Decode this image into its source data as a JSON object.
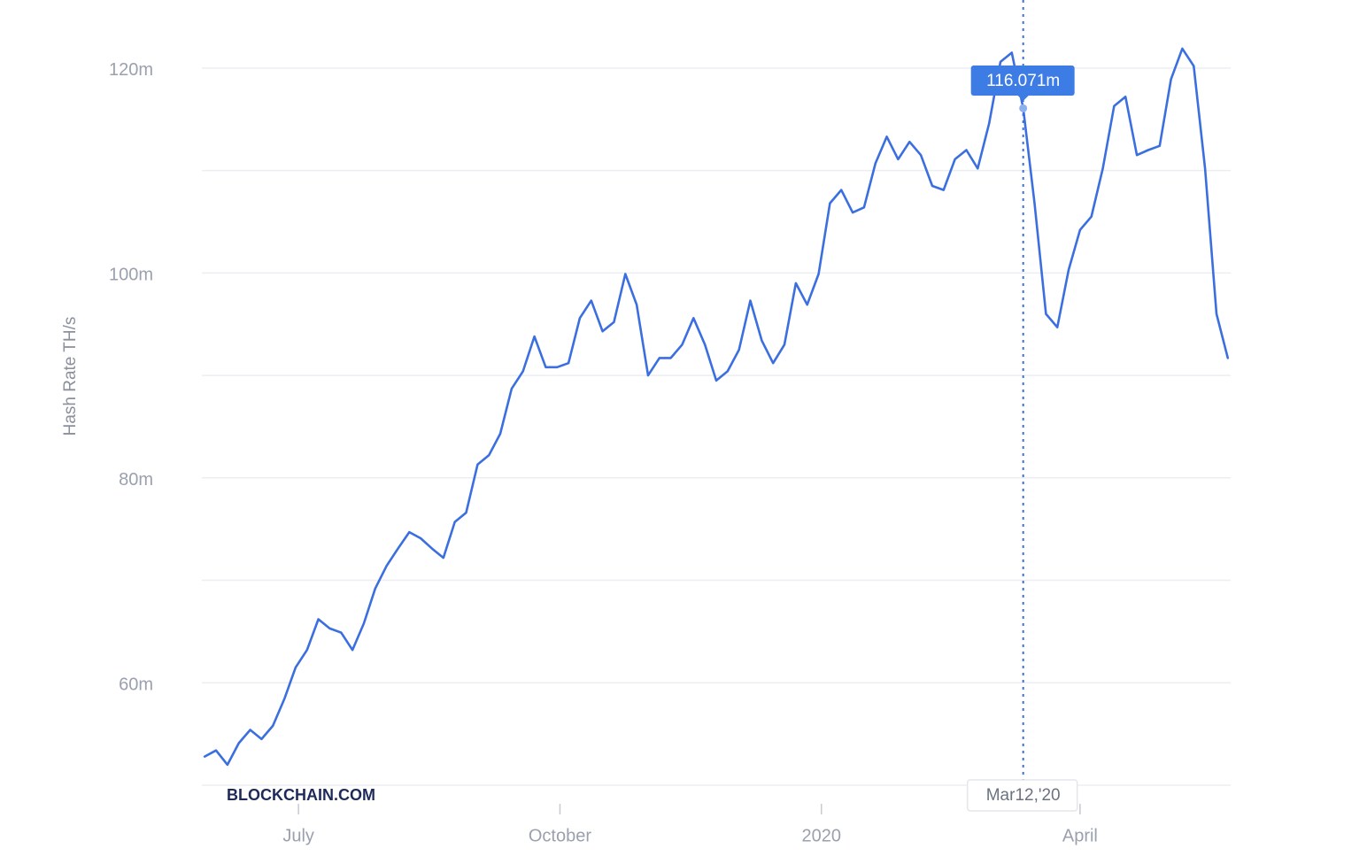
{
  "chart_data": {
    "type": "line",
    "y_axis_label": "Hash Rate TH/s",
    "watermark": "BLOCKCHAIN.COM",
    "color": "#3b6fe0",
    "xlim": [
      "2019-05-28",
      "2020-05-24"
    ],
    "ylim": [
      50,
      125
    ],
    "yticks": [
      {
        "value": 60,
        "label": "60m"
      },
      {
        "value": 80,
        "label": "80m"
      },
      {
        "value": 100,
        "label": "100m"
      },
      {
        "value": 120,
        "label": "120m"
      }
    ],
    "minor_yticks": [
      50,
      70,
      90,
      110
    ],
    "grid": true,
    "xticks": [
      {
        "value": "2019-07-01",
        "label": "July"
      },
      {
        "value": "2019-10-01",
        "label": "October"
      },
      {
        "value": "2020-01-01",
        "label": "2020"
      },
      {
        "value": "2020-04-01",
        "label": "April"
      }
    ],
    "x": [
      "2019-05-29",
      "2019-06-02",
      "2019-06-06",
      "2019-06-10",
      "2019-06-14",
      "2019-06-18",
      "2019-06-22",
      "2019-06-26",
      "2019-06-30",
      "2019-07-04",
      "2019-07-08",
      "2019-07-12",
      "2019-07-16",
      "2019-07-20",
      "2019-07-24",
      "2019-07-28",
      "2019-08-01",
      "2019-08-05",
      "2019-08-09",
      "2019-08-13",
      "2019-08-17",
      "2019-08-21",
      "2019-08-25",
      "2019-08-29",
      "2019-09-02",
      "2019-09-06",
      "2019-09-10",
      "2019-09-14",
      "2019-09-18",
      "2019-09-22",
      "2019-09-26",
      "2019-09-30",
      "2019-10-04",
      "2019-10-08",
      "2019-10-12",
      "2019-10-16",
      "2019-10-20",
      "2019-10-24",
      "2019-10-28",
      "2019-11-01",
      "2019-11-05",
      "2019-11-09",
      "2019-11-13",
      "2019-11-17",
      "2019-11-21",
      "2019-11-25",
      "2019-11-29",
      "2019-12-03",
      "2019-12-07",
      "2019-12-11",
      "2019-12-15",
      "2019-12-19",
      "2019-12-23",
      "2019-12-27",
      "2019-12-31",
      "2020-01-04",
      "2020-01-08",
      "2020-01-12",
      "2020-01-16",
      "2020-01-20",
      "2020-01-24",
      "2020-01-28",
      "2020-02-01",
      "2020-02-05",
      "2020-02-09",
      "2020-02-13",
      "2020-02-17",
      "2020-02-21",
      "2020-02-25",
      "2020-02-29",
      "2020-03-04",
      "2020-03-08",
      "2020-03-12",
      "2020-03-16",
      "2020-03-20",
      "2020-03-24",
      "2020-03-28",
      "2020-04-01",
      "2020-04-05",
      "2020-04-09",
      "2020-04-13",
      "2020-04-17",
      "2020-04-21",
      "2020-04-25",
      "2020-04-29",
      "2020-05-03",
      "2020-05-07",
      "2020-05-11",
      "2020-05-15",
      "2020-05-19",
      "2020-05-23"
    ],
    "values": [
      52.8,
      53.4,
      52.0,
      54.1,
      55.4,
      54.5,
      55.8,
      58.4,
      61.5,
      63.2,
      66.2,
      65.3,
      64.9,
      63.2,
      65.8,
      69.2,
      71.4,
      73.1,
      74.7,
      74.1,
      73.1,
      72.2,
      75.7,
      76.6,
      81.3,
      82.2,
      84.3,
      88.7,
      90.4,
      93.8,
      90.8,
      90.8,
      91.2,
      95.6,
      97.3,
      94.3,
      95.2,
      99.9,
      96.9,
      90.0,
      91.7,
      91.7,
      93.0,
      95.6,
      93.0,
      89.5,
      90.4,
      92.5,
      97.3,
      93.4,
      91.2,
      93.0,
      99.0,
      96.9,
      99.9,
      106.8,
      108.1,
      105.9,
      106.4,
      110.7,
      113.3,
      111.1,
      112.8,
      111.5,
      108.5,
      108.1,
      111.1,
      112.0,
      110.2,
      114.6,
      120.6,
      121.5,
      116.071,
      106.8,
      96.0,
      94.7,
      100.3,
      104.2,
      105.5,
      110.2,
      116.3,
      117.2,
      111.5,
      112.0,
      112.4,
      118.9,
      121.9,
      120.2,
      110.2,
      96.0,
      91.7
    ],
    "tooltip": {
      "x": "2020-03-12",
      "x_label": "Mar12,'20",
      "value": 116.071,
      "label": "116.071m"
    }
  }
}
